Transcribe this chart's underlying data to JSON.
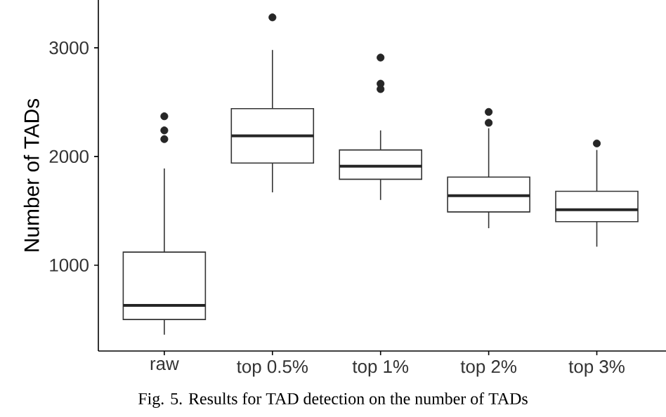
{
  "chart_data": {
    "type": "box",
    "ylabel": "Number of TADs",
    "categories": [
      "raw",
      "top 0.5%",
      "top 1%",
      "top 2%",
      "top 3%"
    ],
    "boxes": [
      {
        "low": 360,
        "q1": 500,
        "median": 630,
        "q3": 1120,
        "high": 1890,
        "outliers": [
          2370,
          2240,
          2160
        ]
      },
      {
        "low": 1670,
        "q1": 1940,
        "median": 2190,
        "q3": 2440,
        "high": 2980,
        "outliers": [
          3280
        ]
      },
      {
        "low": 1600,
        "q1": 1790,
        "median": 1910,
        "q3": 2060,
        "high": 2240,
        "outliers": [
          2910,
          2670,
          2620
        ]
      },
      {
        "low": 1340,
        "q1": 1490,
        "median": 1640,
        "q3": 1810,
        "high": 2260,
        "outliers": [
          2410,
          2310
        ]
      },
      {
        "low": 1170,
        "q1": 1400,
        "median": 1510,
        "q3": 1680,
        "high": 2060,
        "outliers": [
          2120
        ]
      }
    ],
    "ylim": [
      210,
      3440
    ],
    "yticks": [
      1000,
      2000,
      3000
    ],
    "grid": false,
    "annotations": [
      "Fig. 5. Results for TAD detection on the number of TADs"
    ]
  }
}
